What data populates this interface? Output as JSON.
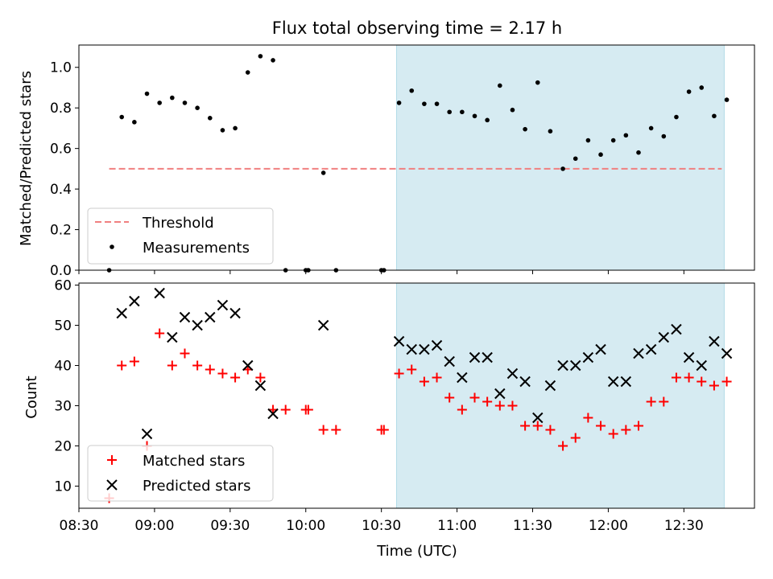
{
  "chart_data": [
    {
      "type": "scatter",
      "title": "Flux total observing time = 2.17 h",
      "ylabel": "Matched/Predicted stars",
      "xlabel": "",
      "ylim": [
        0,
        1.11
      ],
      "xlim": [
        "08:30",
        "12:58"
      ],
      "yticks": [
        "0.0",
        "0.2",
        "0.4",
        "0.6",
        "0.8",
        "1.0"
      ],
      "shaded_span": [
        "10:36",
        "12:46"
      ],
      "shade_color": "#add8e6",
      "threshold": {
        "name": "Threshold",
        "value": 0.5,
        "x": [
          "08:42",
          "12:45"
        ],
        "color": "#f08080",
        "style": "dashed"
      },
      "legend": {
        "position": "lower-left",
        "entries": [
          "Threshold",
          "Measurements"
        ]
      },
      "series": [
        {
          "name": "Measurements",
          "color": "#000000",
          "marker": "dot",
          "x": [
            "08:42",
            "08:47",
            "08:52",
            "08:57",
            "09:02",
            "09:07",
            "09:12",
            "09:17",
            "09:22",
            "09:27",
            "09:32",
            "09:37",
            "09:42",
            "09:47",
            "09:52",
            "10:00",
            "10:01",
            "10:07",
            "10:12",
            "10:30",
            "10:31",
            "10:37",
            "10:42",
            "10:47",
            "10:52",
            "10:57",
            "11:02",
            "11:07",
            "11:12",
            "11:17",
            "11:22",
            "11:27",
            "11:32",
            "11:37",
            "11:42",
            "11:47",
            "11:52",
            "11:57",
            "12:02",
            "12:07",
            "12:12",
            "12:17",
            "12:22",
            "12:27",
            "12:32",
            "12:37",
            "12:42",
            "12:47"
          ],
          "y": [
            0.0,
            0.755,
            0.73,
            0.87,
            0.825,
            0.85,
            0.825,
            0.8,
            0.75,
            0.69,
            0.7,
            0.975,
            1.055,
            1.035,
            0.0,
            0.0,
            0.0,
            0.48,
            0.0,
            0.0,
            0.0,
            0.825,
            0.885,
            0.82,
            0.82,
            0.78,
            0.78,
            0.76,
            0.74,
            0.91,
            0.79,
            0.695,
            0.925,
            0.685,
            0.5,
            0.55,
            0.64,
            0.57,
            0.64,
            0.665,
            0.58,
            0.7,
            0.66,
            0.755,
            0.88,
            0.9,
            0.76,
            0.84
          ]
        }
      ]
    },
    {
      "type": "scatter",
      "ylabel": "Count",
      "xlabel": "Time (UTC)",
      "ylim": [
        4.5,
        60.5
      ],
      "xlim": [
        "08:30",
        "12:58"
      ],
      "yticks": [
        "10",
        "20",
        "30",
        "40",
        "50",
        "60"
      ],
      "xticks": [
        "08:30",
        "09:00",
        "09:30",
        "10:00",
        "10:30",
        "11:00",
        "11:30",
        "12:00",
        "12:30"
      ],
      "shaded_span": [
        "10:36",
        "12:46"
      ],
      "shade_color": "#add8e6",
      "legend": {
        "position": "lower-left",
        "entries": [
          "Matched stars",
          "Predicted stars"
        ]
      },
      "series": [
        {
          "name": "Matched stars",
          "color": "#ff0000",
          "marker": "plus",
          "x": [
            "08:42",
            "08:47",
            "08:52",
            "08:57",
            "09:02",
            "09:07",
            "09:12",
            "09:17",
            "09:22",
            "09:27",
            "09:32",
            "09:37",
            "09:42",
            "09:47",
            "09:52",
            "10:00",
            "10:01",
            "10:07",
            "10:12",
            "10:30",
            "10:31",
            "10:37",
            "10:42",
            "10:47",
            "10:52",
            "10:57",
            "11:02",
            "11:07",
            "11:12",
            "11:17",
            "11:22",
            "11:27",
            "11:32",
            "11:37",
            "11:42",
            "11:47",
            "11:52",
            "11:57",
            "12:02",
            "12:07",
            "12:12",
            "12:17",
            "12:22",
            "12:27",
            "12:32",
            "12:37",
            "12:42",
            "12:47"
          ],
          "y": [
            7,
            40,
            41,
            20,
            48,
            40,
            43,
            40,
            39,
            38,
            37,
            39,
            37,
            29,
            29,
            29,
            29,
            24,
            24,
            24,
            24,
            38,
            39,
            36,
            37,
            32,
            29,
            32,
            31,
            30,
            30,
            25,
            25,
            24,
            20,
            22,
            27,
            25,
            23,
            24,
            25,
            31,
            31,
            37,
            37,
            36,
            35,
            36
          ]
        },
        {
          "name": "Predicted stars",
          "color": "#000000",
          "marker": "x",
          "x": [
            "08:47",
            "08:52",
            "08:57",
            "09:02",
            "09:07",
            "09:12",
            "09:17",
            "09:22",
            "09:27",
            "09:32",
            "09:37",
            "09:42",
            "09:47",
            "10:07",
            "10:37",
            "10:42",
            "10:47",
            "10:52",
            "10:57",
            "11:02",
            "11:07",
            "11:12",
            "11:17",
            "11:22",
            "11:27",
            "11:32",
            "11:37",
            "11:42",
            "11:47",
            "11:52",
            "11:57",
            "12:02",
            "12:07",
            "12:12",
            "12:17",
            "12:22",
            "12:27",
            "12:32",
            "12:37",
            "12:42",
            "12:47"
          ],
          "y": [
            53,
            56,
            23,
            58,
            47,
            52,
            50,
            52,
            55,
            53,
            40,
            35,
            28,
            50,
            46,
            44,
            44,
            45,
            41,
            37,
            42,
            42,
            33,
            38,
            36,
            27,
            35,
            40,
            40,
            42,
            44,
            36,
            36,
            43,
            44,
            47,
            49,
            42,
            40,
            46,
            43
          ]
        }
      ]
    }
  ]
}
